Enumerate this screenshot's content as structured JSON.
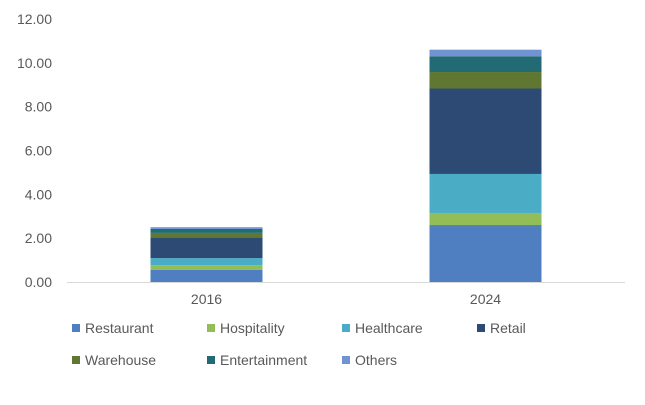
{
  "chart_data": {
    "type": "bar",
    "stacked": true,
    "categories": [
      "2016",
      "2024"
    ],
    "series": [
      {
        "name": "Restaurant",
        "values": [
          0.55,
          2.6
        ],
        "color": "#4f7fc1"
      },
      {
        "name": "Hospitality",
        "values": [
          0.22,
          0.55
        ],
        "color": "#93bd56"
      },
      {
        "name": "Healthcare",
        "values": [
          0.32,
          1.78
        ],
        "color": "#4bacc6"
      },
      {
        "name": "Retail",
        "values": [
          0.95,
          3.9
        ],
        "color": "#2c4a73"
      },
      {
        "name": "Warehouse",
        "values": [
          0.2,
          0.75
        ],
        "color": "#5f7731"
      },
      {
        "name": "Entertainment",
        "values": [
          0.18,
          0.72
        ],
        "color": "#236b74"
      },
      {
        "name": "Others",
        "values": [
          0.08,
          0.3
        ],
        "color": "#7094d2"
      }
    ],
    "title": "",
    "xlabel": "",
    "ylabel": "",
    "ylim": [
      0,
      12
    ],
    "yticks": [
      "0.00",
      "2.00",
      "4.00",
      "6.00",
      "8.00",
      "10.00",
      "12.00"
    ],
    "grid": false,
    "legend": "bottom"
  }
}
